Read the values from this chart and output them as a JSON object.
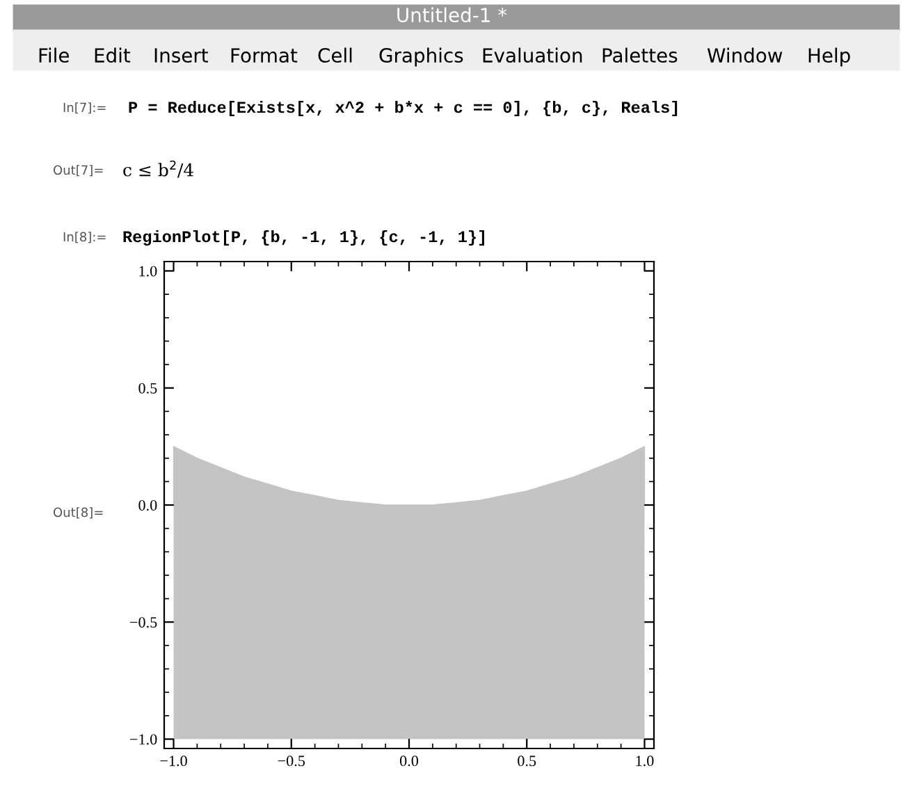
{
  "chart_data": {
    "type": "area",
    "title": "Untitled-1 *",
    "annotations": [
      "File",
      "Edit",
      "Insert",
      "Format",
      "Cell",
      "Graphics",
      "Evaluation",
      "Palettes",
      "Window",
      "Help",
      "In[7]:=",
      "P = Reduce[Exists[x, x^2 + b*x + c == 0], {b, c}, Reals]",
      "Out[7]=",
      "c ≤ b$^{2}$/4",
      "In[8]:=",
      "RegionPlot[P, {b, -1, 1}, {c, -1, 1}]",
      "Out[8]="
    ],
    "x": [
      -1.0,
      -0.9,
      -0.8,
      -0.7,
      -0.6,
      -0.5,
      -0.4,
      -0.3,
      -0.2,
      -0.1,
      0.0,
      0.1,
      0.2,
      0.3,
      0.4,
      0.5,
      0.6,
      0.7,
      0.8,
      0.9,
      1.0
    ],
    "series": [
      {
        "color": "#c4c4c4",
        "values": [
          0.25,
          0.2,
          0.16,
          0.12,
          0.09,
          0.06,
          0.04,
          0.02,
          0.01,
          0.0,
          0.0,
          0.0,
          0.01,
          0.02,
          0.04,
          0.06,
          0.09,
          0.12,
          0.16,
          0.2,
          0.25
        ]
      }
    ],
    "xlim": [
      -1.04,
      1.04
    ],
    "ylim": [
      -1.04,
      1.04
    ],
    "xticks": [
      {
        "value": -1,
        "label": "−1.0"
      },
      {
        "value": -0.5,
        "label": "−0.5"
      },
      {
        "value": 0,
        "label": "0.0"
      },
      {
        "value": 0.5,
        "label": "0.5"
      },
      {
        "value": 1,
        "label": "1.0"
      }
    ],
    "yticks": [
      {
        "value": -1,
        "label": "−1.0"
      },
      {
        "value": -0.5,
        "label": "−0.5"
      },
      {
        "value": 0,
        "label": "0.0"
      },
      {
        "value": 0.5,
        "label": "0.5"
      },
      {
        "value": 1,
        "label": "1.0"
      }
    ],
    "bands": [
      {
        "axis": "y",
        "from": -1,
        "to": 0,
        "color": "#c4c4c4"
      }
    ],
    "grid": false,
    "legend": false
  }
}
